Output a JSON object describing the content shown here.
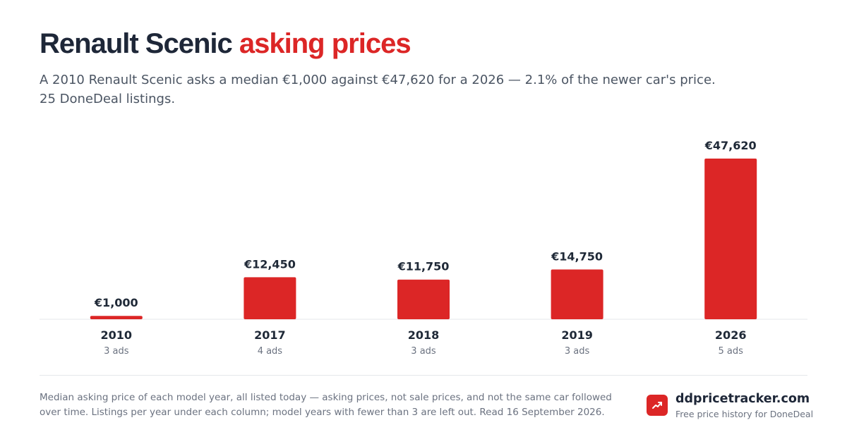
{
  "header": {
    "title_main": "Renault Scenic",
    "title_accent": "asking prices",
    "subtitle": "A 2010 Renault Scenic asks a median €1,000 against €47,620 for a 2026 — 2.1% of the newer car's price. 25 DoneDeal listings."
  },
  "chart_data": {
    "type": "bar",
    "categories": [
      "2010",
      "2017",
      "2018",
      "2019",
      "2026"
    ],
    "values": [
      1000,
      12450,
      11750,
      14750,
      47620
    ],
    "value_labels": [
      "€1,000",
      "€12,450",
      "€11,750",
      "€14,750",
      "€47,620"
    ],
    "sublabels": [
      "3 ads",
      "4 ads",
      "3 ads",
      "3 ads",
      "5 ads"
    ],
    "ylim": [
      0,
      47620
    ],
    "grid": false,
    "bar_color": "#dc2626"
  },
  "footer": {
    "note": "Median asking price of each model year, all listed today — asking prices, not sale prices, and not the same car followed over time. Listings per year under each column; model years with fewer than 3 are left out. Read 16 September 2026.",
    "brand_name": "ddpricetracker.com",
    "brand_tagline": "Free price history for DoneDeal",
    "brand_icon": "trending-up-icon"
  },
  "colors": {
    "accent": "#dc2626",
    "title": "#1e2738",
    "muted": "#6b7280"
  }
}
